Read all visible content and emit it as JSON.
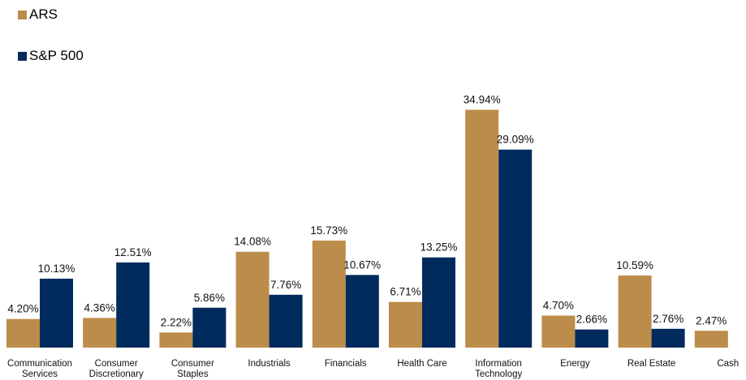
{
  "chart_data": {
    "type": "bar",
    "categories": [
      [
        "Communication",
        "Services"
      ],
      [
        "Consumer",
        "Discretionary"
      ],
      [
        "Consumer",
        "Staples"
      ],
      [
        "Industrials"
      ],
      [
        "Financials"
      ],
      [
        "Health Care"
      ],
      [
        "Information",
        "Technology"
      ],
      [
        "Energy"
      ],
      [
        "Real Estate"
      ],
      [
        "Cash"
      ]
    ],
    "series": [
      {
        "name": "ARS",
        "color": "#BC8C4A",
        "values": [
          4.2,
          4.36,
          2.22,
          14.08,
          15.73,
          6.71,
          34.94,
          4.7,
          10.59,
          2.47
        ],
        "labels": [
          "4.20%",
          "4.36%",
          "2.22%",
          "14.08%",
          "15.73%",
          "6.71%",
          "34.94%",
          "4.70%",
          "10.59%",
          "2.47%"
        ]
      },
      {
        "name": "S&P 500",
        "color": "#002B5C",
        "values": [
          10.13,
          12.51,
          5.86,
          7.76,
          10.67,
          13.25,
          29.09,
          2.66,
          2.76,
          null
        ],
        "labels": [
          "10.13%",
          "12.51%",
          "5.86%",
          "7.76%",
          "10.67%",
          "13.25%",
          "29.09%",
          "2.66%",
          "2.76%",
          null
        ]
      }
    ],
    "title": "",
    "xlabel": "",
    "ylabel": "",
    "ylim": [
      0,
      35
    ],
    "grid": false,
    "legend_position": "top-left"
  },
  "legend": {
    "ars": "ARS",
    "sp500": "S&P 500"
  }
}
